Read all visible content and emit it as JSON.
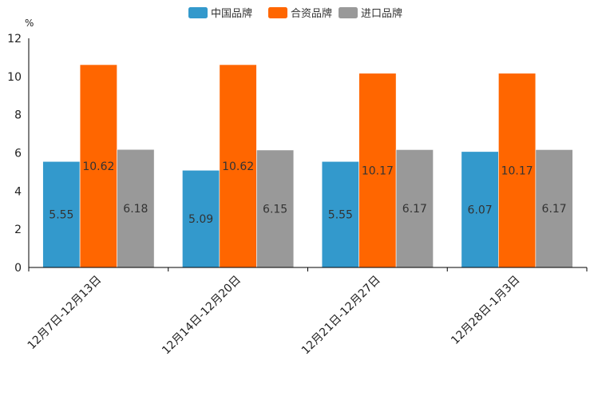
{
  "chart_data": {
    "type": "bar",
    "title": "",
    "unit": "%",
    "xlabel": "",
    "ylabel": "",
    "ylim": [
      0,
      12
    ],
    "yticks": [
      0,
      2,
      4,
      6,
      8,
      10,
      12
    ],
    "categories": [
      "12月7日-12月13日",
      "12月14日-12月20日",
      "12月21日-12月27日",
      "12月28日-1月3日"
    ],
    "series": [
      {
        "name": "中国品牌",
        "color": "#3399cc",
        "values": [
          5.55,
          5.09,
          5.55,
          6.07
        ],
        "labels": [
          "5.55",
          "5.09",
          "5.55",
          "6.07"
        ]
      },
      {
        "name": "合资品牌",
        "color": "#ff6600",
        "values": [
          10.62,
          10.62,
          10.17,
          10.17
        ],
        "labels": [
          "10.62",
          "10.62",
          "10.17",
          "10.17"
        ]
      },
      {
        "name": "进口品牌",
        "color": "#999999",
        "values": [
          6.18,
          6.15,
          6.17,
          6.17
        ],
        "labels": [
          "6.18",
          "6.15",
          "6.17",
          "6.17"
        ]
      }
    ],
    "legend_position": "top-center",
    "grid": false
  }
}
